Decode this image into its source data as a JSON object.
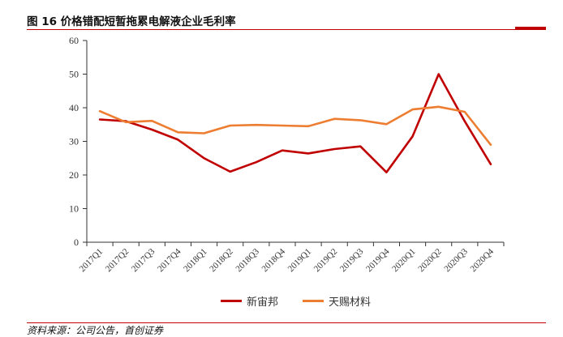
{
  "figure": {
    "title": "图 16 价格错配短暂拖累电解液企业毛利率",
    "source": "资料来源：公司公告，首创证券"
  },
  "colors": {
    "rule": "#c00000",
    "series_1": "#c00000",
    "series_2": "#ed7d31",
    "axis": "#333333"
  },
  "chart_data": {
    "type": "line",
    "title": "",
    "xlabel": "",
    "ylabel": "",
    "ylim": [
      0,
      60
    ],
    "yticks": [
      0,
      10,
      20,
      30,
      40,
      50,
      60
    ],
    "grid": false,
    "legend_position": "bottom",
    "categories": [
      "2017Q1",
      "2017Q2",
      "2017Q3",
      "2017Q4",
      "2018Q1",
      "2018Q2",
      "2018Q3",
      "2018Q4",
      "2019Q1",
      "2019Q2",
      "2019Q3",
      "2019Q4",
      "2020Q1",
      "2020Q2",
      "2020Q3",
      "2020Q4"
    ],
    "series": [
      {
        "name": "新宙邦",
        "color": "#c00000",
        "values": [
          36.5,
          36.0,
          33.5,
          30.5,
          25.0,
          21.0,
          23.8,
          27.3,
          26.4,
          27.7,
          28.5,
          20.8,
          31.5,
          50.0,
          36.0,
          23.2
        ]
      },
      {
        "name": "天赐材料",
        "color": "#ed7d31",
        "values": [
          39.0,
          35.7,
          36.1,
          32.7,
          32.4,
          34.7,
          34.9,
          34.7,
          34.5,
          36.7,
          36.3,
          35.1,
          39.5,
          40.3,
          38.8,
          29.0
        ]
      }
    ]
  }
}
